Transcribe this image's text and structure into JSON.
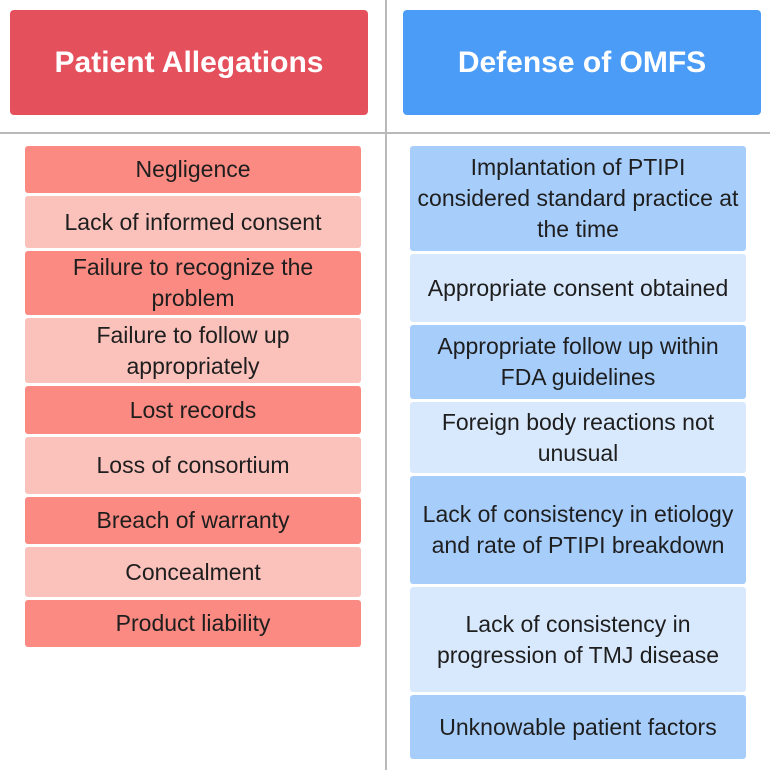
{
  "headers": {
    "left": "Patient Allegations",
    "right": "Defense of OMFS"
  },
  "allegations": [
    "Negligence",
    "Lack of informed consent",
    "Failure to recognize the problem",
    "Failure to follow up appropriately",
    "Lost records",
    "Loss of consortium",
    "Breach of warranty",
    "Concealment",
    "Product liability"
  ],
  "defenses": [
    "Implantation of PTIPI considered standard practice at the time",
    "Appropriate consent obtained",
    "Appropriate follow up within FDA guidelines",
    "Foreign body reactions not unusual",
    "Lack of consistency in etiology and rate of PTIPI breakdown",
    "Lack of consistency in progression of TMJ disease",
    "Unknowable patient factors"
  ],
  "colors": {
    "left_header": "#e5505d",
    "right_header": "#4b9cf6",
    "left_dark": "#fa8a82",
    "left_light": "#fbc1bb",
    "right_dark": "#a7cdfb",
    "right_light": "#d9e9fd"
  }
}
